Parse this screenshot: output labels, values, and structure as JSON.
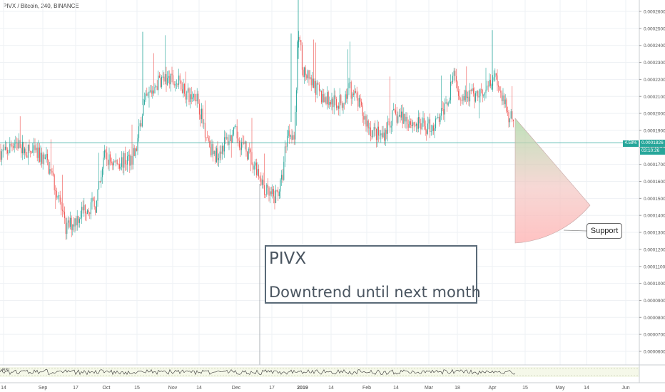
{
  "header": {
    "title": "PIVX / Bitcoin, 240, BINANCE"
  },
  "note": {
    "line1": "PIVX",
    "line2": "Downtrend until next month"
  },
  "callout": {
    "label": "Support"
  },
  "price_tag": {
    "percent": "4.58%",
    "price": "0.0001826",
    "timer": "03:10:26"
  },
  "rsi": {
    "label": "RSI"
  },
  "colors": {
    "up": "#26a69a",
    "down": "#ef5350",
    "grid": "#eef1f4",
    "hline": "#26a69a"
  },
  "chart_data": {
    "type": "candlestick",
    "title": "PIVX / Bitcoin, 240, BINANCE",
    "x_ticks": [
      "14",
      "Sep",
      "17",
      "Oct",
      "15",
      "Nov",
      "14",
      "Dec",
      "17",
      "2019",
      "14",
      "Feb",
      "14",
      "Mar",
      "18",
      "Apr",
      "15",
      "May",
      "14",
      "Jun"
    ],
    "y_ticks": [
      "0.0002600",
      "0.0002500",
      "0.0002400",
      "0.0002300",
      "0.0002200",
      "0.0002100",
      "0.0002000",
      "0.0001900",
      "0.0001800",
      "0.0001700",
      "0.0001600",
      "0.0001500",
      "0.0001400",
      "0.0001300",
      "0.0001200",
      "0.0001100",
      "0.0001000",
      "0.0000900",
      "0.0000800",
      "0.0000700",
      "0.0000600"
    ],
    "ylim": [
      5.45e-05,
      0.0002685
    ],
    "current_price": 0.0001826,
    "price_path": [
      [
        0,
        0.000178
      ],
      [
        8,
        0.000176
      ],
      [
        20,
        0.000184
      ],
      [
        35,
        0.000178
      ],
      [
        50,
        0.000176
      ],
      [
        65,
        0.000172
      ],
      [
        80,
        0.000154
      ],
      [
        92,
        0.000132
      ],
      [
        105,
        0.000137
      ],
      [
        120,
        0.000145
      ],
      [
        135,
        0.000146
      ],
      [
        145,
        0.000174
      ],
      [
        160,
        0.000171
      ],
      [
        175,
        0.000172
      ],
      [
        190,
        0.000176
      ],
      [
        200,
        0.000203
      ],
      [
        210,
        0.000212
      ],
      [
        225,
        0.00022
      ],
      [
        240,
        0.000219
      ],
      [
        255,
        0.000217
      ],
      [
        265,
        0.000209
      ],
      [
        275,
        0.000212
      ],
      [
        285,
        0.000194
      ],
      [
        300,
        0.000174
      ],
      [
        315,
        0.000183
      ],
      [
        330,
        0.000188
      ],
      [
        345,
        0.000178
      ],
      [
        360,
        0.000168
      ],
      [
        375,
        0.000152
      ],
      [
        385,
        0.00015
      ],
      [
        395,
        0.00016
      ],
      [
        402,
        0.000188
      ],
      [
        408,
        0.00019
      ],
      [
        413,
        0.000186
      ],
      [
        418,
        0.00025
      ],
      [
        425,
        0.000225
      ],
      [
        435,
        0.000218
      ],
      [
        450,
        0.00021
      ],
      [
        465,
        0.000207
      ],
      [
        480,
        0.000206
      ],
      [
        490,
        0.000214
      ],
      [
        500,
        0.000208
      ],
      [
        510,
        0.000198
      ],
      [
        520,
        0.00019
      ],
      [
        535,
        0.000186
      ],
      [
        550,
        0.000198
      ],
      [
        565,
        0.000198
      ],
      [
        580,
        0.000194
      ],
      [
        595,
        0.000192
      ],
      [
        610,
        0.000193
      ],
      [
        625,
        0.000204
      ],
      [
        635,
        0.000222
      ],
      [
        645,
        0.000212
      ],
      [
        660,
        0.00021
      ],
      [
        675,
        0.000212
      ],
      [
        685,
        0.00022
      ],
      [
        695,
        0.000223
      ],
      [
        705,
        0.000206
      ],
      [
        712,
        0.0002
      ],
      [
        720,
        0.000195
      ]
    ],
    "horizontal_line": 0.0001826,
    "vertical_line_x_label": "Dec 17",
    "shape": "sector",
    "indicator": "RSI"
  }
}
